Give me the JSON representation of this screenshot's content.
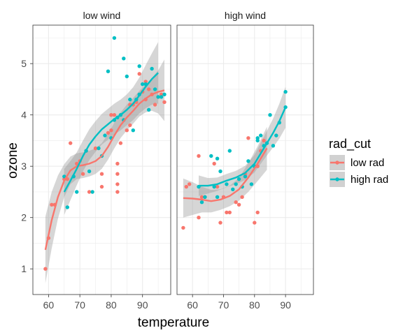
{
  "chart_data": {
    "type": "scatter",
    "subtype": "faceted scatter with loess smooth and confidence band",
    "xlabel": "temperature",
    "ylabel": "ozone",
    "xlim": [
      55,
      99
    ],
    "ylim": [
      0.5,
      5.75
    ],
    "x_ticks": [
      60,
      70,
      80,
      90
    ],
    "y_ticks": [
      1,
      2,
      3,
      4,
      5
    ],
    "x_tick_labels": [
      "60",
      "70",
      "80",
      "90"
    ],
    "y_tick_labels": [
      "1",
      "2",
      "3",
      "4",
      "5"
    ],
    "grid": true,
    "legend": {
      "title": "rad_cut",
      "position": "right",
      "entries": [
        "low rad",
        "high rad"
      ]
    },
    "colors": {
      "low rad": "#F8766D",
      "high rad": "#00BFC4",
      "band": "#999999",
      "panel_border": "#333333",
      "grid": "#EBEBEB"
    },
    "facets": [
      {
        "label": "low wind",
        "series": [
          {
            "name": "low rad",
            "points": [
              [
                59,
                1.0
              ],
              [
                60,
                1.6
              ],
              [
                61,
                2.25
              ],
              [
                62,
                2.25
              ],
              [
                65,
                2.75
              ],
              [
                66,
                2.75
              ],
              [
                67,
                3.45
              ],
              [
                69,
                3.05
              ],
              [
                70,
                3.1
              ],
              [
                71,
                2.85
              ],
              [
                72,
                3.3
              ],
              [
                73,
                2.5
              ],
              [
                75,
                3.35
              ],
              [
                77,
                2.6
              ],
              [
                77,
                2.85
              ],
              [
                79,
                3.65
              ],
              [
                80,
                3.7
              ],
              [
                80,
                4.0
              ],
              [
                81,
                4.0
              ],
              [
                82,
                2.5
              ],
              [
                82,
                2.65
              ],
              [
                82,
                2.85
              ],
              [
                82,
                3.05
              ],
              [
                83,
                3.45
              ],
              [
                84,
                3.9
              ],
              [
                85,
                3.7
              ],
              [
                86,
                3.8
              ],
              [
                86,
                4.2
              ],
              [
                87,
                4.2
              ],
              [
                88,
                4.25
              ],
              [
                89,
                4.8
              ],
              [
                90,
                4.45
              ],
              [
                91,
                4.3
              ],
              [
                91,
                4.65
              ],
              [
                92,
                4.5
              ],
              [
                93,
                4.4
              ],
              [
                94,
                4.2
              ],
              [
                95,
                4.35
              ],
              [
                96,
                4.4
              ],
              [
                97,
                4.25
              ]
            ],
            "smooth": [
              [
                59,
                1.37
              ],
              [
                61,
                1.95
              ],
              [
                63,
                2.4
              ],
              [
                65,
                2.72
              ],
              [
                67,
                2.92
              ],
              [
                69,
                3.0
              ],
              [
                71,
                3.02
              ],
              [
                73,
                3.05
              ],
              [
                75,
                3.1
              ],
              [
                77,
                3.2
              ],
              [
                79,
                3.38
              ],
              [
                81,
                3.6
              ],
              [
                83,
                3.8
              ],
              [
                85,
                3.95
              ],
              [
                87,
                4.08
              ],
              [
                89,
                4.22
              ],
              [
                91,
                4.32
              ],
              [
                93,
                4.4
              ],
              [
                95,
                4.45
              ],
              [
                97,
                4.48
              ]
            ],
            "band_half_width": [
              0.65,
              0.55,
              0.42,
              0.32,
              0.27,
              0.25,
              0.25,
              0.25,
              0.25,
              0.25,
              0.25,
              0.25,
              0.25,
              0.25,
              0.25,
              0.25,
              0.27,
              0.32,
              0.42,
              0.6
            ]
          },
          {
            "name": "high rad",
            "points": [
              [
                65,
                2.8
              ],
              [
                66,
                2.2
              ],
              [
                68,
                2.8
              ],
              [
                69,
                2.5
              ],
              [
                72,
                3.3
              ],
              [
                73,
                2.9
              ],
              [
                74,
                2.5
              ],
              [
                76,
                3.35
              ],
              [
                77,
                3.2
              ],
              [
                78,
                3.6
              ],
              [
                79,
                4.85
              ],
              [
                80,
                3.55
              ],
              [
                81,
                5.5
              ],
              [
                81,
                3.9
              ],
              [
                82,
                3.95
              ],
              [
                83,
                4.0
              ],
              [
                84,
                5.1
              ],
              [
                84,
                3.9
              ],
              [
                85,
                4.75
              ],
              [
                86,
                4.3
              ],
              [
                87,
                3.7
              ],
              [
                88,
                4.3
              ],
              [
                89,
                4.95
              ],
              [
                89,
                4.4
              ],
              [
                90,
                4.6
              ],
              [
                91,
                4.6
              ],
              [
                92,
                4.1
              ],
              [
                93,
                4.9
              ],
              [
                94,
                4.5
              ],
              [
                95,
                4.35
              ],
              [
                96,
                4.35
              ],
              [
                97,
                4.4
              ]
            ],
            "smooth": [
              [
                65,
                2.5
              ],
              [
                67,
                2.72
              ],
              [
                69,
                2.95
              ],
              [
                71,
                3.2
              ],
              [
                73,
                3.42
              ],
              [
                75,
                3.58
              ],
              [
                77,
                3.72
              ],
              [
                79,
                3.82
              ],
              [
                81,
                3.92
              ],
              [
                83,
                4.0
              ],
              [
                85,
                4.1
              ],
              [
                87,
                4.22
              ],
              [
                89,
                4.38
              ],
              [
                91,
                4.55
              ],
              [
                93,
                4.7
              ],
              [
                95,
                4.82
              ]
            ],
            "band_half_width": [
              0.45,
              0.38,
              0.32,
              0.3,
              0.3,
              0.3,
              0.3,
              0.3,
              0.3,
              0.3,
              0.3,
              0.32,
              0.35,
              0.42,
              0.5,
              0.6
            ]
          }
        ]
      },
      {
        "label": "high wind",
        "series": [
          {
            "name": "low rad",
            "points": [
              [
                57,
                1.8
              ],
              [
                58,
                2.6
              ],
              [
                59,
                2.65
              ],
              [
                62,
                2.0
              ],
              [
                62,
                3.2
              ],
              [
                63,
                2.4
              ],
              [
                64,
                2.4
              ],
              [
                67,
                3.05
              ],
              [
                68,
                2.6
              ],
              [
                69,
                1.9
              ],
              [
                70,
                2.4
              ],
              [
                71,
                2.1
              ],
              [
                72,
                2.1
              ],
              [
                74,
                2.3
              ],
              [
                75,
                2.25
              ],
              [
                76,
                2.4
              ],
              [
                77,
                2.85
              ],
              [
                78,
                3.55
              ],
              [
                80,
                1.9
              ],
              [
                81,
                2.1
              ],
              [
                81,
                3.0
              ],
              [
                82,
                3.3
              ],
              [
                83,
                3.5
              ]
            ],
            "smooth": [
              [
                57,
                2.38
              ],
              [
                60,
                2.37
              ],
              [
                63,
                2.35
              ],
              [
                66,
                2.32
              ],
              [
                69,
                2.35
              ],
              [
                72,
                2.42
              ],
              [
                75,
                2.55
              ],
              [
                78,
                2.78
              ],
              [
                81,
                3.05
              ],
              [
                84,
                3.35
              ]
            ],
            "band_half_width": [
              0.38,
              0.32,
              0.25,
              0.22,
              0.2,
              0.2,
              0.22,
              0.28,
              0.34,
              0.42
            ]
          },
          {
            "name": "high rad",
            "points": [
              [
                62,
                2.6
              ],
              [
                63,
                2.3
              ],
              [
                64,
                2.4
              ],
              [
                66,
                3.2
              ],
              [
                67,
                2.6
              ],
              [
                68,
                3.15
              ],
              [
                68,
                2.4
              ],
              [
                69,
                2.9
              ],
              [
                71,
                2.65
              ],
              [
                72,
                3.3
              ],
              [
                73,
                2.55
              ],
              [
                74,
                2.65
              ],
              [
                75,
                2.75
              ],
              [
                76,
                2.6
              ],
              [
                77,
                2.8
              ],
              [
                78,
                3.1
              ],
              [
                79,
                2.65
              ],
              [
                80,
                3.0
              ],
              [
                81,
                3.55
              ],
              [
                81,
                3.5
              ],
              [
                82,
                3.6
              ],
              [
                83,
                3.4
              ],
              [
                84,
                3.45
              ],
              [
                85,
                4.0
              ],
              [
                86,
                3.4
              ],
              [
                87,
                3.6
              ],
              [
                88,
                3.85
              ],
              [
                90,
                4.45
              ],
              [
                90,
                4.15
              ]
            ],
            "smooth": [
              [
                62,
                2.62
              ],
              [
                65,
                2.62
              ],
              [
                68,
                2.65
              ],
              [
                71,
                2.72
              ],
              [
                74,
                2.78
              ],
              [
                77,
                2.87
              ],
              [
                80,
                3.05
              ],
              [
                83,
                3.35
              ],
              [
                86,
                3.65
              ],
              [
                88,
                3.88
              ],
              [
                90,
                4.15
              ]
            ],
            "band_half_width": [
              0.2,
              0.15,
              0.13,
              0.13,
              0.13,
              0.14,
              0.17,
              0.22,
              0.28,
              0.34,
              0.4
            ]
          }
        ]
      }
    ]
  }
}
